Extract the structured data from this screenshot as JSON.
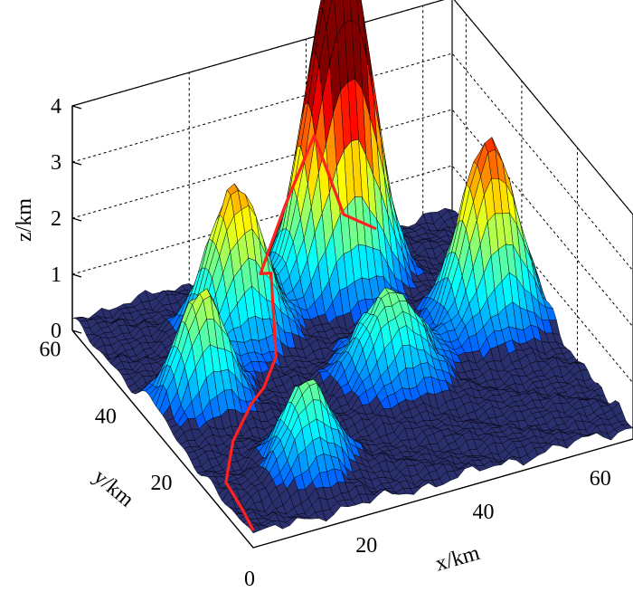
{
  "chart_data": {
    "type": "surface3d",
    "title": "",
    "xlabel": "x/km",
    "ylabel": "y/km",
    "zlabel": "z/km",
    "xlim": [
      0,
      65
    ],
    "ylim": [
      0,
      65
    ],
    "zlim": [
      0,
      4
    ],
    "x_ticks": [
      "0",
      "20",
      "40",
      "60"
    ],
    "y_ticks": [
      "20",
      "40",
      "60"
    ],
    "z_ticks": [
      "0",
      "1",
      "2",
      "3",
      "4"
    ],
    "grid": true,
    "colormap": "jet",
    "peaks": [
      {
        "x": 8,
        "y": 35,
        "height": 2.0,
        "width": 4.0
      },
      {
        "x": 20,
        "y": 48,
        "height": 2.7,
        "width": 4.5
      },
      {
        "x": 15,
        "y": 12,
        "height": 1.6,
        "width": 4.0
      },
      {
        "x": 38,
        "y": 54,
        "height": 3.8,
        "width": 4.5
      },
      {
        "x": 43,
        "y": 54,
        "height": 3.6,
        "width": 4.0
      },
      {
        "x": 37,
        "y": 28,
        "height": 1.6,
        "width": 5.0
      },
      {
        "x": 57,
        "y": 35,
        "height": 3.2,
        "width": 4.5
      }
    ],
    "path": {
      "color": "#ff2020",
      "points": [
        [
          0,
          0
        ],
        [
          2,
          8
        ],
        [
          2,
          14
        ],
        [
          7,
          22
        ],
        [
          13,
          28
        ],
        [
          18,
          34
        ],
        [
          22,
          38
        ],
        [
          24,
          44
        ],
        [
          26,
          52
        ],
        [
          33,
          58
        ],
        [
          39,
          60
        ],
        [
          45,
          62
        ],
        [
          52,
          65
        ]
      ]
    },
    "colors": {
      "base_surface": "#2a2f6e",
      "mesh_line": "#000000",
      "grid_line": "#000000"
    }
  }
}
